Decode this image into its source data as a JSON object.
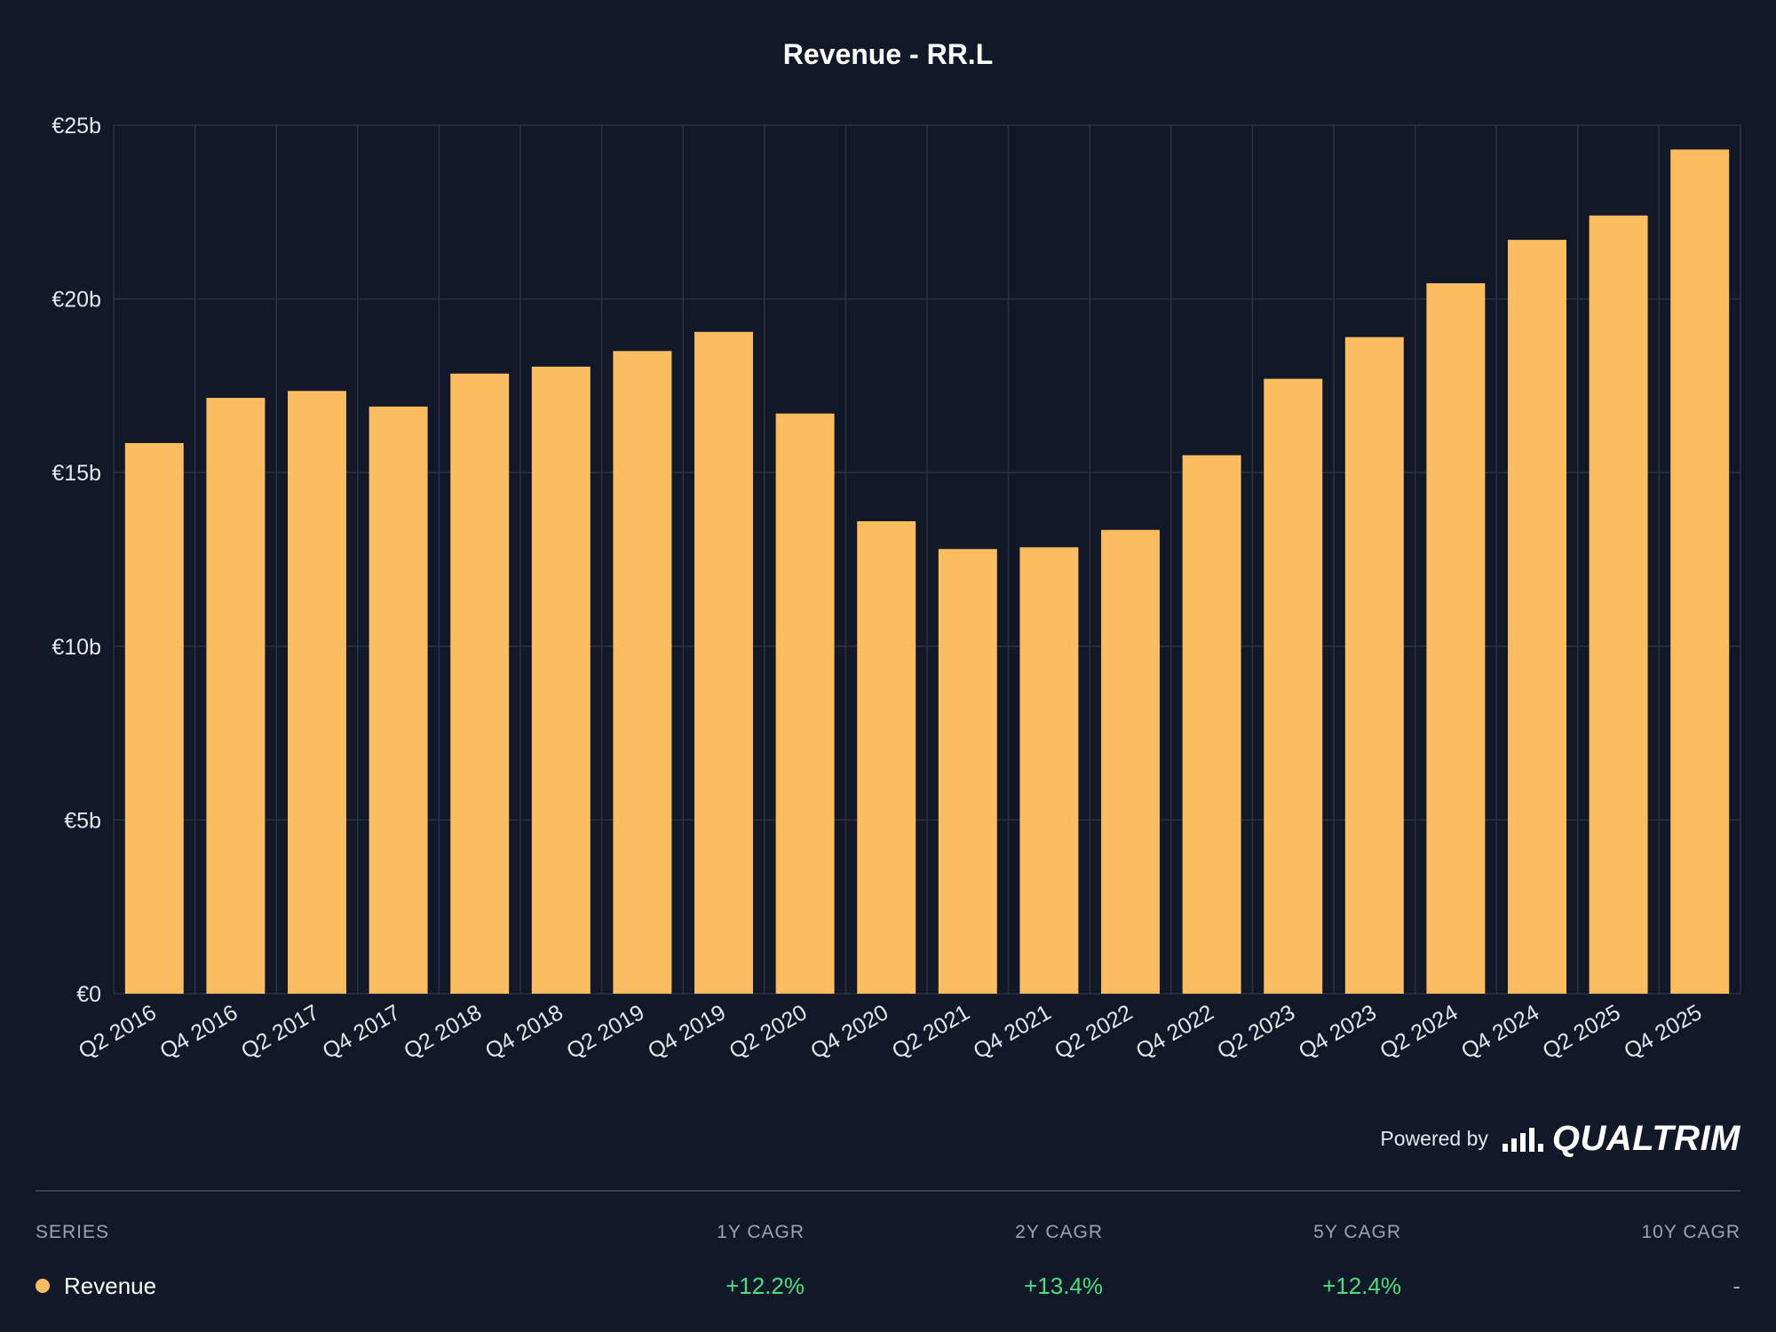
{
  "chart_data": {
    "type": "bar",
    "title": "Revenue - RR.L",
    "xlabel": "",
    "ylabel": "",
    "ylim": [
      0,
      25
    ],
    "y_ticks": [
      0,
      5,
      10,
      15,
      20,
      25
    ],
    "y_tick_labels": [
      "€0",
      "€5b",
      "€10b",
      "€15b",
      "€20b",
      "€25b"
    ],
    "categories": [
      "Q2 2016",
      "Q4 2016",
      "Q2 2017",
      "Q4 2017",
      "Q2 2018",
      "Q4 2018",
      "Q2 2019",
      "Q4 2019",
      "Q2 2020",
      "Q4 2020",
      "Q2 2021",
      "Q4 2021",
      "Q2 2022",
      "Q4 2022",
      "Q2 2023",
      "Q4 2023",
      "Q2 2024",
      "Q4 2024",
      "Q2 2025",
      "Q4 2025"
    ],
    "values": [
      15.85,
      17.15,
      17.35,
      16.9,
      17.85,
      18.05,
      18.5,
      19.05,
      16.7,
      13.6,
      12.8,
      12.85,
      13.35,
      15.5,
      17.7,
      18.9,
      20.45,
      21.7,
      22.4,
      24.3
    ],
    "unit": "€ billions",
    "bar_color": "#fbbd60",
    "grid": true,
    "legend": "none"
  },
  "footer": {
    "powered_by": "Powered by",
    "brand": "QUALTRIM",
    "brand_icon": "signal-bars-icon"
  },
  "table": {
    "headers": {
      "series": "SERIES",
      "y1": "1Y CAGR",
      "y2": "2Y CAGR",
      "y5": "5Y CAGR",
      "y10": "10Y CAGR"
    },
    "rows": [
      {
        "name": "Revenue",
        "color": "#fbbd60",
        "y1": "+12.2%",
        "y2": "+13.4%",
        "y5": "+12.4%",
        "y10": "-"
      }
    ],
    "positive_color": "#4ade80"
  }
}
